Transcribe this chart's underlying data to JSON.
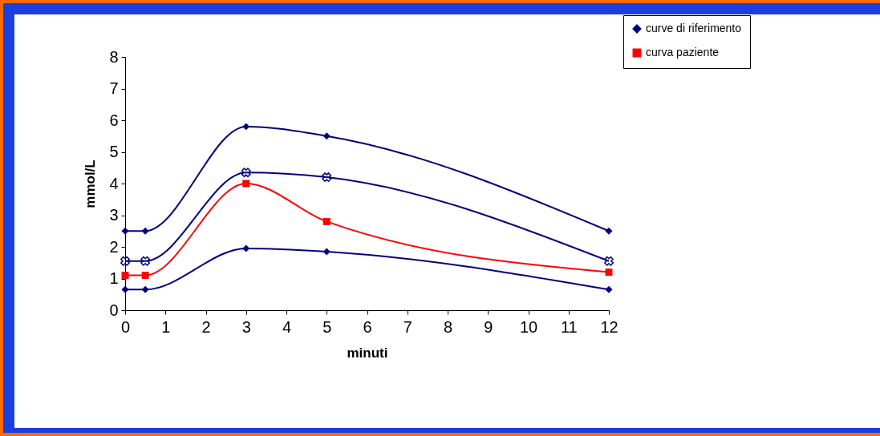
{
  "chart_data": {
    "type": "line",
    "xlabel": "minuti",
    "ylabel": "mmol/L",
    "x": [
      0,
      0.5,
      3,
      5,
      12
    ],
    "series": [
      {
        "name": "curve di riferimento",
        "color": "#000080",
        "marker": "diamond",
        "values": [
          2.5,
          2.5,
          5.8,
          5.5,
          2.5
        ]
      },
      {
        "color": "#000080",
        "marker": "cross",
        "values": [
          1.55,
          1.55,
          4.35,
          4.2,
          1.55
        ]
      },
      {
        "color": "#000080",
        "marker": "diamond",
        "values": [
          0.65,
          0.65,
          1.95,
          1.85,
          0.65
        ]
      },
      {
        "name": "curva paziente",
        "color": "#ff0000",
        "marker": "square",
        "values": [
          1.1,
          1.1,
          4.0,
          2.8,
          1.2
        ]
      }
    ],
    "xlim": [
      0,
      12
    ],
    "xticks": [
      0,
      1,
      2,
      3,
      4,
      5,
      6,
      7,
      8,
      9,
      10,
      11,
      12
    ],
    "ylim": [
      0,
      8
    ],
    "yticks": [
      0,
      1,
      2,
      3,
      4,
      5,
      6,
      7,
      8
    ],
    "grid": false,
    "legend": "top right"
  }
}
